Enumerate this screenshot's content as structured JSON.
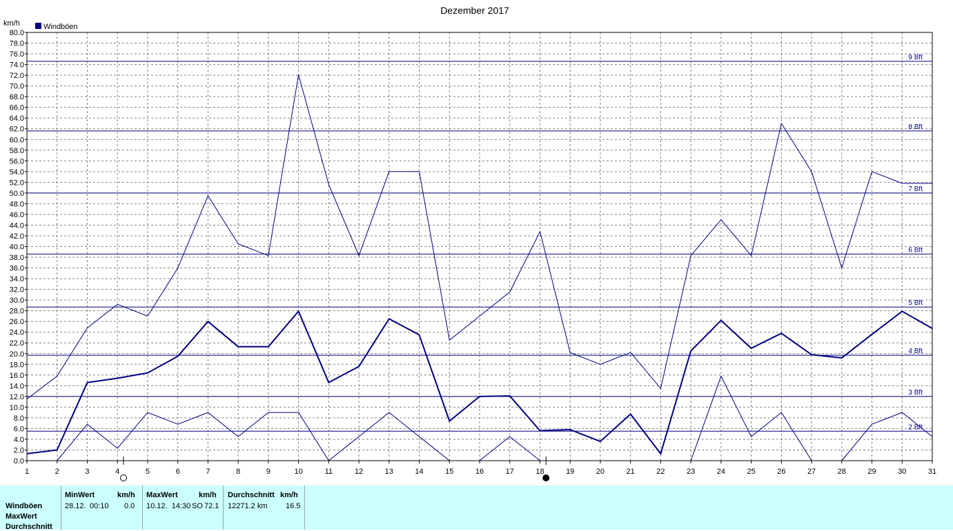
{
  "chart_data": {
    "type": "line",
    "title": "Dezember 2017",
    "ylabel": "km/h",
    "legend": {
      "label": "Windböen",
      "color": "#000080",
      "placement": "top-left"
    },
    "ylim": [
      0,
      80
    ],
    "y_tick_step": 2,
    "x": [
      1,
      2,
      3,
      4,
      5,
      6,
      7,
      8,
      9,
      10,
      11,
      12,
      13,
      14,
      15,
      16,
      17,
      18,
      19,
      20,
      21,
      22,
      23,
      24,
      25,
      26,
      27,
      28,
      29,
      30,
      31
    ],
    "xlim": [
      1,
      31
    ],
    "grid": true,
    "series": [
      {
        "role": "max",
        "color": "#000080",
        "width": 1,
        "values": [
          11.5,
          15.8,
          24.8,
          29.2,
          27.0,
          36.0,
          49.5,
          40.5,
          38.3,
          72.1,
          51.6,
          38.3,
          54.0,
          54.0,
          22.5,
          27.0,
          31.5,
          42.8,
          20.2,
          18.0,
          20.2,
          13.5,
          38.3,
          45.0,
          38.3,
          63.0,
          54.0,
          36.0,
          54.0,
          51.8,
          51.8
        ]
      },
      {
        "role": "average",
        "color": "#000080",
        "width": 2,
        "values": [
          1.3,
          2.0,
          14.6,
          15.4,
          16.4,
          19.5,
          26.0,
          21.3,
          21.3,
          27.9,
          14.6,
          17.6,
          26.5,
          23.5,
          7.4,
          12.0,
          12.1,
          5.6,
          5.8,
          3.6,
          8.7,
          1.3,
          20.5,
          26.2,
          21.0,
          23.8,
          19.8,
          19.2,
          23.6,
          27.9,
          24.7
        ]
      },
      {
        "role": "min",
        "color": "#000080",
        "width": 1,
        "values": [
          null,
          0.0,
          6.8,
          2.3,
          9.0,
          6.8,
          9.0,
          4.5,
          9.0,
          9.0,
          0.0,
          4.5,
          9.0,
          4.5,
          0.0,
          0.0,
          4.5,
          0.0,
          null,
          null,
          null,
          null,
          0.0,
          15.8,
          4.5,
          9.0,
          0.0,
          0.0,
          6.8,
          9.0,
          4.5
        ]
      }
    ],
    "segments": [
      [
        [
          1,
          11.5
        ],
        [
          2,
          15.8
        ],
        [
          3,
          24.8
        ],
        [
          4,
          29.2
        ],
        [
          5,
          27.0
        ],
        [
          6,
          36.0
        ],
        [
          7,
          49.5
        ],
        [
          8,
          40.5
        ],
        [
          9,
          38.3
        ],
        [
          10,
          72.1
        ],
        [
          11,
          51.6
        ],
        [
          12,
          38.3
        ],
        [
          13,
          54.0
        ],
        [
          14,
          54.0
        ],
        [
          15,
          22.5
        ],
        [
          16,
          27.0
        ],
        [
          17,
          31.5
        ],
        [
          18,
          42.8
        ],
        [
          19,
          20.2
        ],
        [
          20,
          18.0
        ],
        [
          21,
          20.2
        ],
        [
          22,
          13.5
        ],
        [
          23,
          38.3
        ],
        [
          24,
          45.0
        ],
        [
          25,
          38.3
        ],
        [
          26,
          63.0
        ],
        [
          27,
          54.0
        ],
        [
          28,
          36.0
        ],
        [
          29,
          54.0
        ],
        [
          30,
          51.8
        ],
        [
          31,
          51.8
        ]
      ],
      [
        [
          1,
          1.3
        ],
        [
          2,
          2.0
        ],
        [
          3,
          14.6
        ],
        [
          4,
          15.4
        ],
        [
          5,
          16.4
        ],
        [
          6,
          19.5
        ],
        [
          7,
          26.0
        ],
        [
          8,
          21.3
        ],
        [
          9,
          21.3
        ],
        [
          10,
          27.9
        ],
        [
          11,
          14.6
        ],
        [
          12,
          17.6
        ],
        [
          13,
          26.5
        ],
        [
          14,
          23.5
        ],
        [
          15,
          7.4
        ],
        [
          16,
          12.0
        ],
        [
          17,
          12.1
        ],
        [
          18,
          5.6
        ],
        [
          19,
          5.8
        ],
        [
          20,
          3.6
        ],
        [
          21,
          8.7
        ],
        [
          22,
          1.3
        ],
        [
          23,
          20.5
        ],
        [
          24,
          26.2
        ],
        [
          25,
          21.0
        ],
        [
          26,
          23.8
        ],
        [
          27,
          19.8
        ],
        [
          28,
          19.2
        ],
        [
          29,
          23.6
        ],
        [
          30,
          27.9
        ],
        [
          31,
          24.7
        ]
      ],
      [
        [
          2,
          0.0
        ],
        [
          3,
          6.8
        ],
        [
          4,
          2.3
        ],
        [
          5,
          9.0
        ],
        [
          6,
          6.8
        ],
        [
          7,
          9.0
        ],
        [
          8,
          4.5
        ],
        [
          9,
          9.0
        ],
        [
          10,
          9.0
        ],
        [
          11,
          0.0
        ],
        [
          12,
          4.5
        ],
        [
          13,
          9.0
        ],
        [
          14,
          4.5
        ],
        [
          15,
          0.0
        ]
      ],
      [
        [
          16,
          0.0
        ],
        [
          17,
          4.5
        ],
        [
          18,
          0.0
        ]
      ],
      [
        [
          23,
          0.0
        ],
        [
          24,
          15.8
        ],
        [
          25,
          4.5
        ],
        [
          26,
          9.0
        ],
        [
          27,
          0.0
        ]
      ],
      [
        [
          28,
          0.0
        ],
        [
          29,
          6.8
        ],
        [
          30,
          9.0
        ],
        [
          31,
          4.5
        ]
      ]
    ],
    "beaufort_lines": [
      {
        "label": "2 Bft",
        "value": 5.5
      },
      {
        "label": "3 Bft",
        "value": 12.0
      },
      {
        "label": "4 Bft",
        "value": 19.7
      },
      {
        "label": "5 Bft",
        "value": 28.7
      },
      {
        "label": "6 Bft",
        "value": 38.6
      },
      {
        "label": "7 Bft",
        "value": 50.0
      },
      {
        "label": "8 Bft",
        "value": 61.6
      },
      {
        "label": "9 Bft",
        "value": 74.6
      }
    ],
    "moon_phases": [
      {
        "day": 4,
        "phase": "full"
      },
      {
        "day": 18,
        "phase": "new"
      }
    ]
  },
  "stats": {
    "row_labels": [
      "Windböen",
      "MaxWert",
      "Durchschnitt"
    ],
    "min": {
      "header": "MinWert",
      "unit": "km/h",
      "date": "28.12.",
      "time": "00:10",
      "value": "0.0"
    },
    "max": {
      "header": "MaxWert",
      "unit": "km/h",
      "datetime": "10.12.  14:30",
      "dir": "SO",
      "value": "72.1"
    },
    "avg": {
      "header": "Durchschnitt",
      "unit": "km/h",
      "distance": "12271.2 km",
      "value": "16.5"
    }
  }
}
